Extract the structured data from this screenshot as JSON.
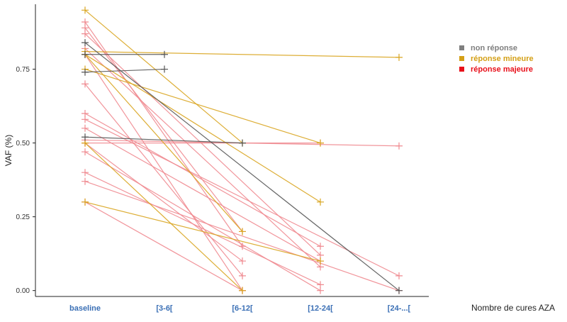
{
  "chart_data": {
    "type": "line",
    "xlabel": "Nombre de cures AZA",
    "ylabel": "VAF (%)",
    "categories": [
      "baseline",
      "[3-6[",
      "[6-12[",
      "[12-24[",
      "[24-...["
    ],
    "y_ticks": [
      "0.00",
      "0.25",
      "0.50",
      "0.75"
    ],
    "ylim": [
      -0.02,
      0.97
    ],
    "grid": false,
    "legend_position": "top-right",
    "legend": [
      {
        "key": "non",
        "label": "non réponse",
        "color": "#7f7f7f"
      },
      {
        "key": "min",
        "label": "réponse mineure",
        "color": "#d4a017"
      },
      {
        "key": "maj",
        "label": "réponse majeure",
        "color": "#e8101a"
      }
    ],
    "line_colors": {
      "non": "#555555",
      "min": "#d9a520",
      "maj": "#ef8a90"
    },
    "series": [
      {
        "group": "non",
        "points": [
          [
            0,
            0.84
          ],
          [
            4,
            0.0
          ]
        ]
      },
      {
        "group": "non",
        "points": [
          [
            0,
            0.8
          ],
          [
            1,
            0.8
          ]
        ]
      },
      {
        "group": "non",
        "points": [
          [
            0,
            0.74
          ],
          [
            1,
            0.75
          ]
        ]
      },
      {
        "group": "non",
        "points": [
          [
            0,
            0.52
          ],
          [
            2,
            0.5
          ]
        ]
      },
      {
        "group": "min",
        "points": [
          [
            0,
            0.95
          ],
          [
            2,
            0.5
          ]
        ]
      },
      {
        "group": "min",
        "points": [
          [
            0,
            0.81
          ],
          [
            4,
            0.79
          ]
        ]
      },
      {
        "group": "min",
        "points": [
          [
            0,
            0.75
          ],
          [
            3,
            0.5
          ]
        ]
      },
      {
        "group": "min",
        "points": [
          [
            0,
            0.8
          ],
          [
            3,
            0.3
          ]
        ]
      },
      {
        "group": "min",
        "points": [
          [
            0,
            0.8
          ],
          [
            2,
            0.2
          ]
        ]
      },
      {
        "group": "min",
        "points": [
          [
            0,
            0.5
          ],
          [
            2,
            0.0
          ]
        ]
      },
      {
        "group": "min",
        "points": [
          [
            0,
            0.3
          ],
          [
            3,
            0.1
          ]
        ]
      },
      {
        "group": "maj",
        "points": [
          [
            0,
            0.91
          ],
          [
            2,
            0.15
          ]
        ]
      },
      {
        "group": "maj",
        "points": [
          [
            0,
            0.89
          ],
          [
            2,
            0.2
          ]
        ]
      },
      {
        "group": "maj",
        "points": [
          [
            0,
            0.87
          ],
          [
            3,
            0.12
          ]
        ]
      },
      {
        "group": "maj",
        "points": [
          [
            0,
            0.82
          ],
          [
            3,
            0.08
          ]
        ]
      },
      {
        "group": "maj",
        "points": [
          [
            0,
            0.8
          ],
          [
            2,
            0.0
          ]
        ]
      },
      {
        "group": "maj",
        "points": [
          [
            0,
            0.7
          ],
          [
            2,
            0.05
          ]
        ]
      },
      {
        "group": "maj",
        "points": [
          [
            0,
            0.6
          ],
          [
            3,
            0.15
          ]
        ]
      },
      {
        "group": "maj",
        "points": [
          [
            0,
            0.58
          ],
          [
            4,
            0.05
          ]
        ]
      },
      {
        "group": "maj",
        "points": [
          [
            0,
            0.55
          ],
          [
            3,
            0.1
          ]
        ]
      },
      {
        "group": "maj",
        "points": [
          [
            0,
            0.51
          ],
          [
            4,
            0.49
          ]
        ]
      },
      {
        "group": "maj",
        "points": [
          [
            0,
            0.5
          ],
          [
            3,
            0.5
          ]
        ]
      },
      {
        "group": "maj",
        "points": [
          [
            0,
            0.5
          ],
          [
            2,
            0.1
          ]
        ]
      },
      {
        "group": "maj",
        "points": [
          [
            0,
            0.47
          ],
          [
            3,
            0.0
          ]
        ]
      },
      {
        "group": "maj",
        "points": [
          [
            0,
            0.4
          ],
          [
            3,
            0.02
          ]
        ]
      },
      {
        "group": "maj",
        "points": [
          [
            0,
            0.37
          ],
          [
            4,
            0.0
          ]
        ]
      },
      {
        "group": "maj",
        "points": [
          [
            0,
            0.3
          ],
          [
            2,
            0.0
          ]
        ]
      }
    ]
  }
}
